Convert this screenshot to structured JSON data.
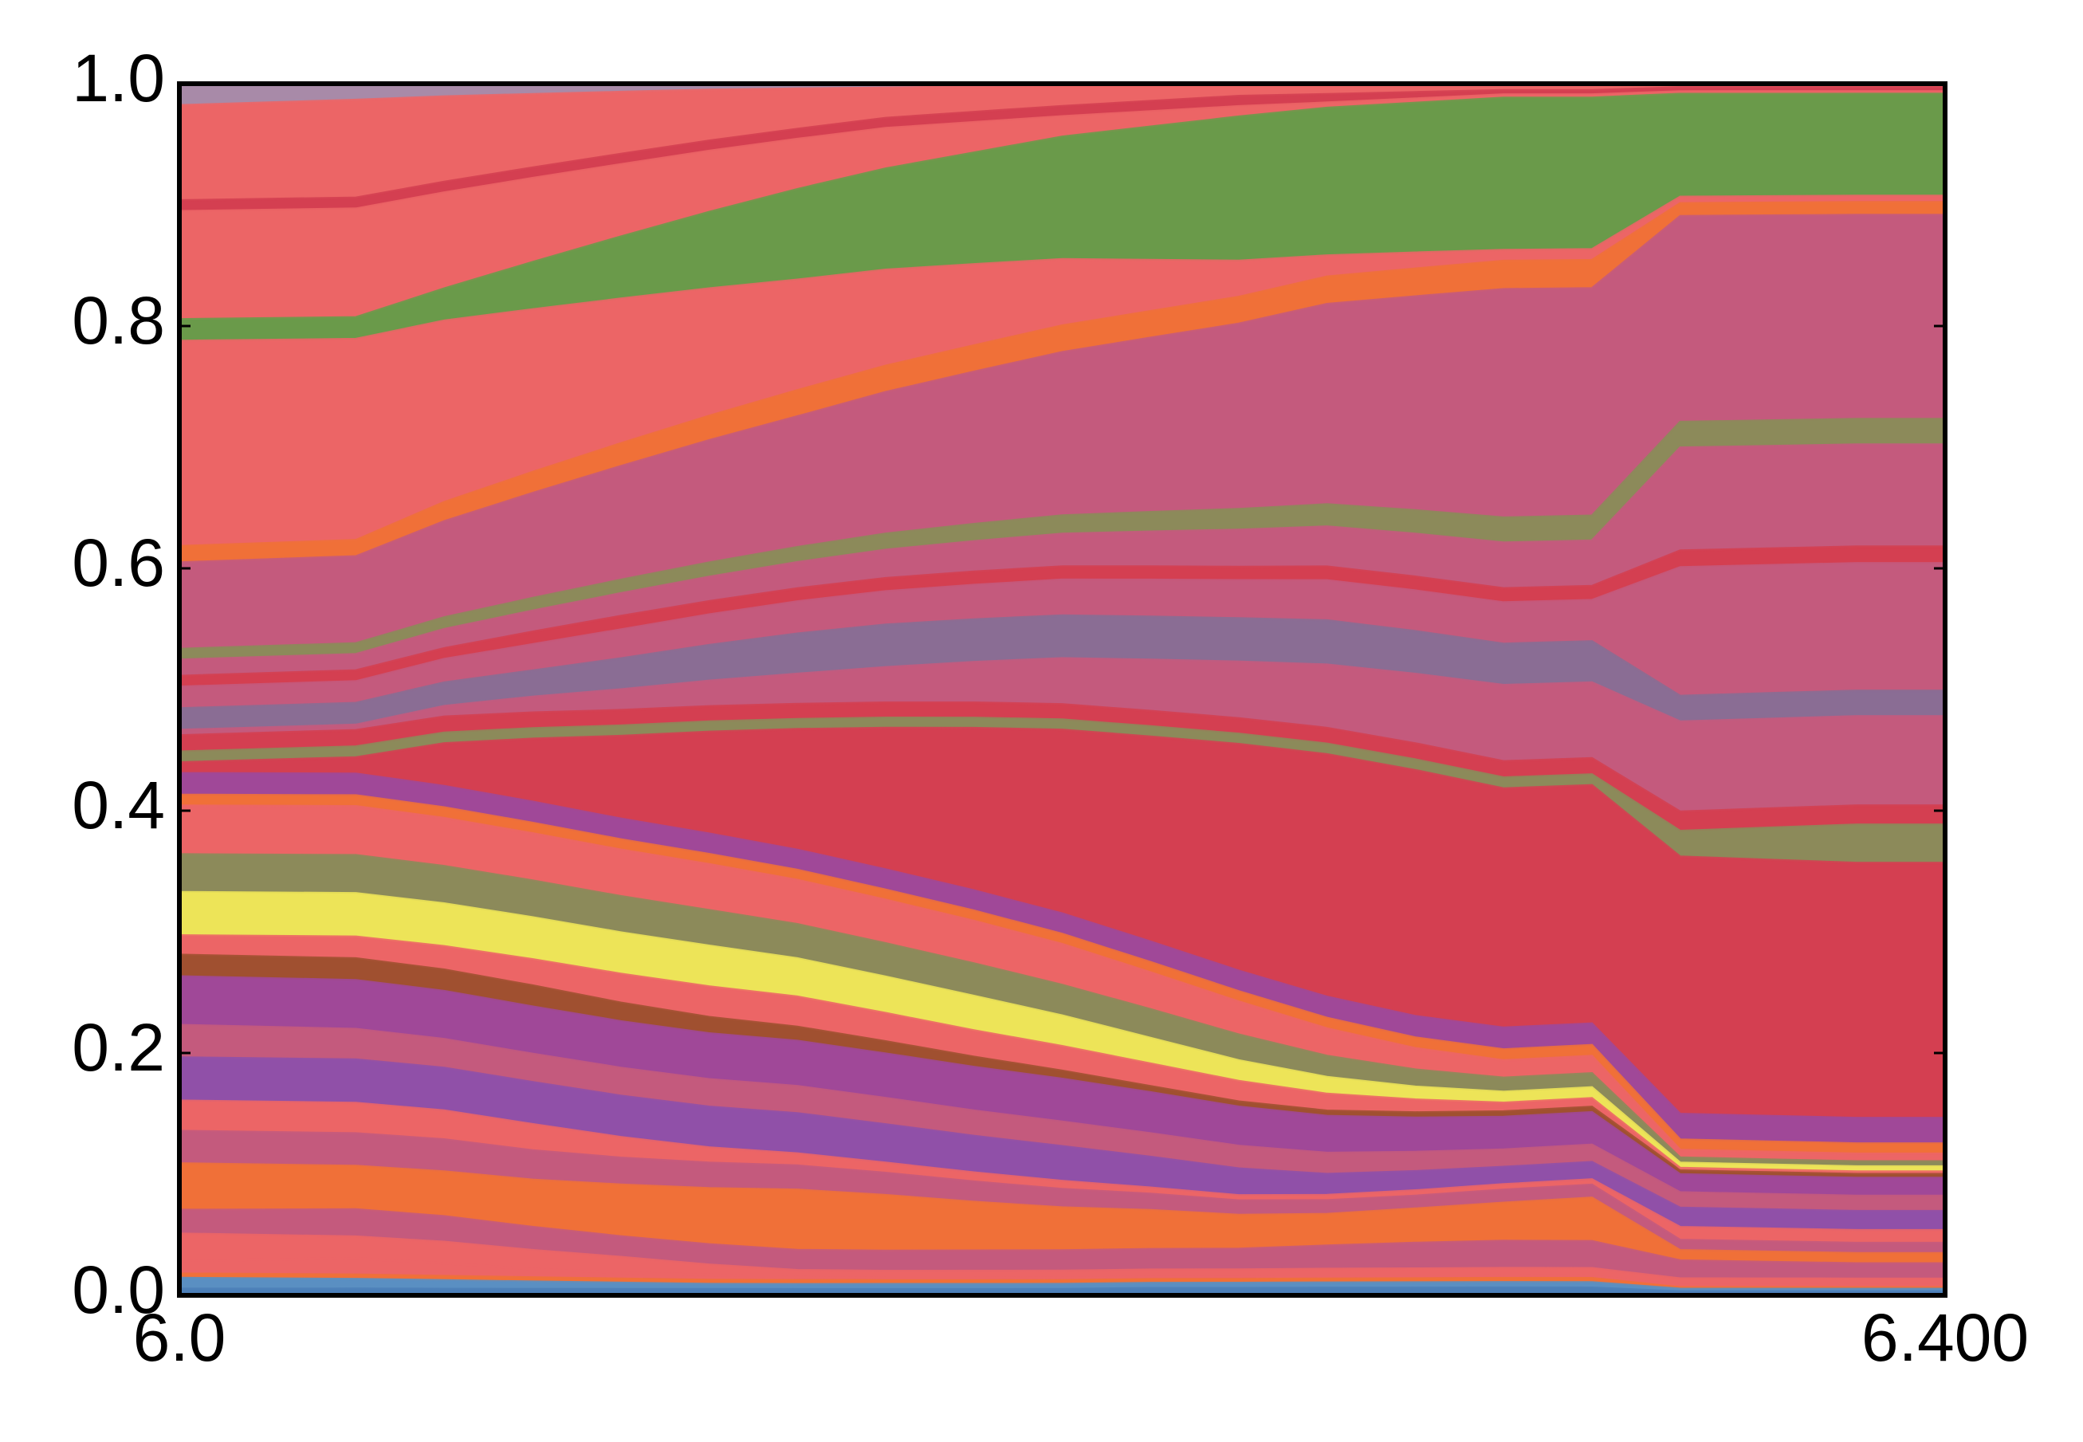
{
  "chart_data": {
    "type": "area",
    "stacking": "normalized",
    "title": "",
    "xlabel": "",
    "ylabel": "",
    "xlim": [
      6.0,
      6.4
    ],
    "ylim": [
      0.0,
      1.0
    ],
    "x": [
      6.0,
      6.04,
      6.06,
      6.08,
      6.1,
      6.12,
      6.14,
      6.16,
      6.18,
      6.2,
      6.22,
      6.24,
      6.26,
      6.28,
      6.3,
      6.32,
      6.34,
      6.36,
      6.38,
      6.4
    ],
    "x_tick_labels": [
      {
        "value": 6.0,
        "label": "6.0"
      },
      {
        "value": 6.4,
        "label": "6.400"
      }
    ],
    "y_tick_labels": [
      {
        "value": 0.0,
        "label": "0.0"
      },
      {
        "value": 0.2,
        "label": "0.2"
      },
      {
        "value": 0.4,
        "label": "0.4"
      },
      {
        "value": 0.6,
        "label": "0.6"
      },
      {
        "value": 0.8,
        "label": "0.8"
      },
      {
        "value": 1.0,
        "label": "1.0"
      }
    ],
    "grid": false,
    "legend": "none",
    "series": [
      {
        "color": "#4c7fb8",
        "values": [
          0.006,
          0.006,
          0.006,
          0.006,
          0.006,
          0.006,
          0.006,
          0.006,
          0.006,
          0.006,
          0.007,
          0.007,
          0.007,
          0.007,
          0.007,
          0.007,
          0.003,
          0.003,
          0.003,
          0.003
        ]
      },
      {
        "color": "#5a8fc2",
        "values": [
          0.01,
          0.009,
          0.008,
          0.007,
          0.006,
          0.005,
          0.005,
          0.005,
          0.005,
          0.005,
          0.005,
          0.005,
          0.005,
          0.005,
          0.005,
          0.005,
          0.002,
          0.002,
          0.002,
          0.002
        ]
      },
      {
        "color": "#f07038",
        "values": [
          0.004,
          0.004,
          0.004,
          0.004,
          0.004,
          0.004,
          0.004,
          0.004,
          0.004,
          0.004,
          0.004,
          0.004,
          0.004,
          0.004,
          0.004,
          0.004,
          0.002,
          0.002,
          0.002,
          0.002
        ]
      },
      {
        "color": "#ec6566",
        "values": [
          0.012,
          0.015,
          0.012,
          0.008,
          0.006,
          0.005,
          0.003,
          0.002,
          0.002,
          0.002,
          0.002,
          0.002,
          0.002,
          0.002,
          0.002,
          0.002,
          0.001,
          0.001,
          0.001,
          0.001
        ]
      },
      {
        "color": "#ec6566",
        "values": [
          0.025,
          0.02,
          0.02,
          0.018,
          0.015,
          0.01,
          0.007,
          0.007,
          0.007,
          0.007,
          0.007,
          0.007,
          0.007,
          0.007,
          0.007,
          0.007,
          0.005,
          0.005,
          0.005,
          0.005
        ]
      },
      {
        "color": "#c45a7d",
        "values": [
          0.022,
          0.025,
          0.024,
          0.022,
          0.02,
          0.02,
          0.02,
          0.02,
          0.02,
          0.02,
          0.02,
          0.02,
          0.022,
          0.024,
          0.025,
          0.025,
          0.014,
          0.013,
          0.012,
          0.012
        ]
      },
      {
        "color": "#f07038",
        "values": [
          0.043,
          0.04,
          0.042,
          0.045,
          0.05,
          0.055,
          0.06,
          0.055,
          0.048,
          0.042,
          0.038,
          0.033,
          0.03,
          0.032,
          0.035,
          0.04,
          0.008,
          0.008,
          0.008,
          0.008
        ]
      },
      {
        "color": "#c45a7d",
        "values": [
          0.03,
          0.03,
          0.03,
          0.028,
          0.026,
          0.025,
          0.024,
          0.022,
          0.02,
          0.018,
          0.016,
          0.014,
          0.013,
          0.012,
          0.012,
          0.012,
          0.008,
          0.008,
          0.008,
          0.008
        ]
      },
      {
        "color": "#ec6566",
        "values": [
          0.028,
          0.028,
          0.027,
          0.025,
          0.02,
          0.015,
          0.012,
          0.01,
          0.009,
          0.008,
          0.006,
          0.005,
          0.005,
          0.005,
          0.005,
          0.005,
          0.01,
          0.01,
          0.01,
          0.01
        ]
      },
      {
        "color": "#9050a8",
        "values": [
          0.04,
          0.04,
          0.04,
          0.04,
          0.04,
          0.04,
          0.04,
          0.038,
          0.036,
          0.034,
          0.03,
          0.026,
          0.02,
          0.018,
          0.016,
          0.016,
          0.015,
          0.015,
          0.015,
          0.015
        ]
      },
      {
        "color": "#c45a7d",
        "values": [
          0.03,
          0.028,
          0.027,
          0.027,
          0.027,
          0.027,
          0.027,
          0.026,
          0.025,
          0.024,
          0.023,
          0.022,
          0.02,
          0.018,
          0.016,
          0.016,
          0.012,
          0.012,
          0.012,
          0.012
        ]
      },
      {
        "color": "#a04898",
        "values": [
          0.045,
          0.045,
          0.045,
          0.045,
          0.045,
          0.045,
          0.045,
          0.044,
          0.043,
          0.042,
          0.04,
          0.038,
          0.035,
          0.032,
          0.03,
          0.03,
          0.014,
          0.014,
          0.014,
          0.014
        ]
      },
      {
        "color": "#a05030",
        "values": [
          0.02,
          0.02,
          0.02,
          0.02,
          0.018,
          0.016,
          0.014,
          0.012,
          0.01,
          0.008,
          0.006,
          0.005,
          0.005,
          0.005,
          0.005,
          0.005,
          0.003,
          0.003,
          0.003,
          0.003
        ]
      },
      {
        "color": "#ec6566",
        "values": [
          0.018,
          0.02,
          0.022,
          0.025,
          0.028,
          0.03,
          0.03,
          0.028,
          0.026,
          0.024,
          0.022,
          0.02,
          0.016,
          0.012,
          0.008,
          0.008,
          0.002,
          0.002,
          0.002,
          0.002
        ]
      },
      {
        "color": "#ede458",
        "values": [
          0.04,
          0.04,
          0.04,
          0.04,
          0.04,
          0.04,
          0.038,
          0.036,
          0.034,
          0.03,
          0.025,
          0.02,
          0.016,
          0.012,
          0.01,
          0.01,
          0.004,
          0.004,
          0.004,
          0.004
        ]
      },
      {
        "color": "#8c8a5a",
        "values": [
          0.035,
          0.035,
          0.035,
          0.035,
          0.035,
          0.035,
          0.034,
          0.033,
          0.032,
          0.03,
          0.028,
          0.025,
          0.02,
          0.016,
          0.013,
          0.013,
          0.004,
          0.004,
          0.004,
          0.004
        ]
      },
      {
        "color": "#ec6566",
        "values": [
          0.045,
          0.045,
          0.045,
          0.045,
          0.045,
          0.045,
          0.044,
          0.043,
          0.042,
          0.04,
          0.036,
          0.032,
          0.026,
          0.02,
          0.016,
          0.016,
          0.006,
          0.006,
          0.006,
          0.006
        ]
      },
      {
        "color": "#f07038",
        "values": [
          0.01,
          0.01,
          0.01,
          0.01,
          0.01,
          0.01,
          0.01,
          0.01,
          0.01,
          0.01,
          0.01,
          0.01,
          0.01,
          0.01,
          0.01,
          0.01,
          0.008,
          0.008,
          0.008,
          0.008
        ]
      },
      {
        "color": "#a04898",
        "values": [
          0.02,
          0.02,
          0.02,
          0.02,
          0.02,
          0.02,
          0.02,
          0.02,
          0.02,
          0.02,
          0.02,
          0.02,
          0.02,
          0.02,
          0.02,
          0.02,
          0.02,
          0.02,
          0.02,
          0.02
        ]
      },
      {
        "color": "#d43f51",
        "values": [
          0.01,
          0.015,
          0.04,
          0.06,
          0.08,
          0.1,
          0.12,
          0.14,
          0.16,
          0.18,
          0.2,
          0.22,
          0.23,
          0.23,
          0.22,
          0.22,
          0.2,
          0.2,
          0.2,
          0.2
        ]
      },
      {
        "color": "#8c8a5a",
        "values": [
          0.01,
          0.01,
          0.01,
          0.01,
          0.01,
          0.01,
          0.01,
          0.01,
          0.01,
          0.01,
          0.01,
          0.01,
          0.01,
          0.01,
          0.01,
          0.01,
          0.02,
          0.025,
          0.03,
          0.03
        ]
      },
      {
        "color": "#d43f51",
        "values": [
          0.015,
          0.015,
          0.015,
          0.015,
          0.015,
          0.015,
          0.015,
          0.015,
          0.015,
          0.015,
          0.015,
          0.015,
          0.015,
          0.015,
          0.015,
          0.015,
          0.015,
          0.015,
          0.015,
          0.015
        ]
      },
      {
        "color": "#c45a7d",
        "values": [
          0.005,
          0.005,
          0.01,
          0.015,
          0.02,
          0.025,
          0.03,
          0.035,
          0.04,
          0.045,
          0.05,
          0.055,
          0.06,
          0.065,
          0.07,
          0.07,
          0.07,
          0.07,
          0.07,
          0.07
        ]
      },
      {
        "color": "#8a6d94",
        "values": [
          0.02,
          0.02,
          0.022,
          0.025,
          0.03,
          0.035,
          0.04,
          0.042,
          0.042,
          0.042,
          0.042,
          0.042,
          0.042,
          0.04,
          0.038,
          0.038,
          0.02,
          0.02,
          0.02,
          0.02
        ]
      },
      {
        "color": "#c45a7d",
        "values": [
          0.02,
          0.02,
          0.022,
          0.025,
          0.028,
          0.03,
          0.032,
          0.033,
          0.034,
          0.035,
          0.036,
          0.037,
          0.038,
          0.038,
          0.038,
          0.038,
          0.1,
          0.1,
          0.1,
          0.1
        ]
      },
      {
        "color": "#d43f51",
        "values": [
          0.01,
          0.01,
          0.01,
          0.012,
          0.013,
          0.013,
          0.013,
          0.013,
          0.013,
          0.013,
          0.013,
          0.013,
          0.013,
          0.013,
          0.013,
          0.013,
          0.013,
          0.013,
          0.013,
          0.013
        ]
      },
      {
        "color": "#c45a7d",
        "values": [
          0.015,
          0.015,
          0.018,
          0.02,
          0.022,
          0.024,
          0.026,
          0.028,
          0.03,
          0.032,
          0.034,
          0.036,
          0.038,
          0.04,
          0.042,
          0.042,
          0.08,
          0.08,
          0.08,
          0.08
        ]
      },
      {
        "color": "#8c8a5a",
        "values": [
          0.01,
          0.01,
          0.011,
          0.012,
          0.013,
          0.014,
          0.015,
          0.016,
          0.017,
          0.018,
          0.019,
          0.02,
          0.021,
          0.022,
          0.023,
          0.023,
          0.02,
          0.02,
          0.02,
          0.02
        ]
      },
      {
        "color": "#c45a7d",
        "values": [
          0.08,
          0.08,
          0.09,
          0.1,
          0.11,
          0.12,
          0.13,
          0.14,
          0.15,
          0.16,
          0.17,
          0.18,
          0.19,
          0.2,
          0.21,
          0.21,
          0.16,
          0.16,
          0.16,
          0.16
        ]
      },
      {
        "color": "#f07038",
        "values": [
          0.015,
          0.015,
          0.018,
          0.02,
          0.022,
          0.024,
          0.026,
          0.026,
          0.026,
          0.026,
          0.026,
          0.026,
          0.026,
          0.026,
          0.026,
          0.026,
          0.01,
          0.01,
          0.01,
          0.01
        ]
      },
      {
        "color": "#ec6566",
        "values": [
          0.19,
          0.185,
          0.17,
          0.155,
          0.14,
          0.125,
          0.11,
          0.095,
          0.08,
          0.065,
          0.05,
          0.035,
          0.02,
          0.015,
          0.01,
          0.01,
          0.005,
          0.005,
          0.005,
          0.005
        ]
      },
      {
        "color": "#6a9a4a",
        "values": [
          0.02,
          0.02,
          0.03,
          0.045,
          0.06,
          0.075,
          0.09,
          0.1,
          0.11,
          0.12,
          0.13,
          0.14,
          0.14,
          0.14,
          0.14,
          0.14,
          0.08,
          0.08,
          0.08,
          0.08
        ]
      },
      {
        "color": "#ec6566",
        "values": [
          0.1,
          0.1,
          0.09,
          0.08,
          0.07,
          0.06,
          0.05,
          0.04,
          0.03,
          0.02,
          0.015,
          0.01,
          0.005,
          0.004,
          0.003,
          0.003,
          0.002,
          0.002,
          0.002,
          0.002
        ]
      },
      {
        "color": "#d43f51",
        "values": [
          0.01,
          0.01,
          0.01,
          0.01,
          0.01,
          0.01,
          0.01,
          0.01,
          0.01,
          0.01,
          0.01,
          0.01,
          0.008,
          0.006,
          0.004,
          0.004,
          0.003,
          0.003,
          0.003,
          0.003
        ]
      },
      {
        "color": "#ec6566",
        "values": [
          0.088,
          0.09,
          0.08,
          0.07,
          0.06,
          0.05,
          0.04,
          0.03,
          0.025,
          0.02,
          0.015,
          0.01,
          0.008,
          0.006,
          0.004,
          0.004,
          0.002,
          0.002,
          0.002,
          0.002
        ]
      },
      {
        "color": "#a88aa8",
        "values": [
          0.02,
          0.015,
          0.012,
          0.01,
          0.008,
          0.006,
          0.005,
          0.004,
          0.003,
          0.002,
          0.002,
          0.002,
          0.002,
          0.002,
          0.002,
          0.002,
          0.001,
          0.001,
          0.001,
          0.001
        ]
      }
    ]
  }
}
